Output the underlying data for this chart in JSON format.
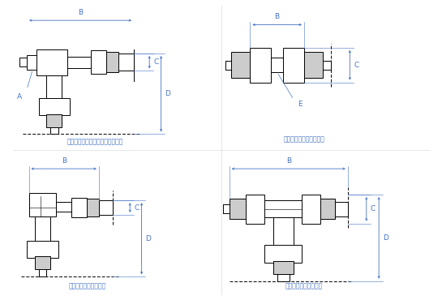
{
  "bg_color": "#ffffff",
  "line_color": "#000000",
  "dim_color": "#4472c4",
  "gray_fill": "#aaaaaa",
  "light_gray": "#cccccc",
  "title_color": "#4472c4",
  "labels": {
    "STL": "ＳＴＬ：スタッドチーズ（Ｌ型）",
    "EU": "ＥＵ：イコールユニオン",
    "EL": "ＥＬ：イコールエルボ",
    "ET": "ＥＴ：イコールチーズ"
  }
}
